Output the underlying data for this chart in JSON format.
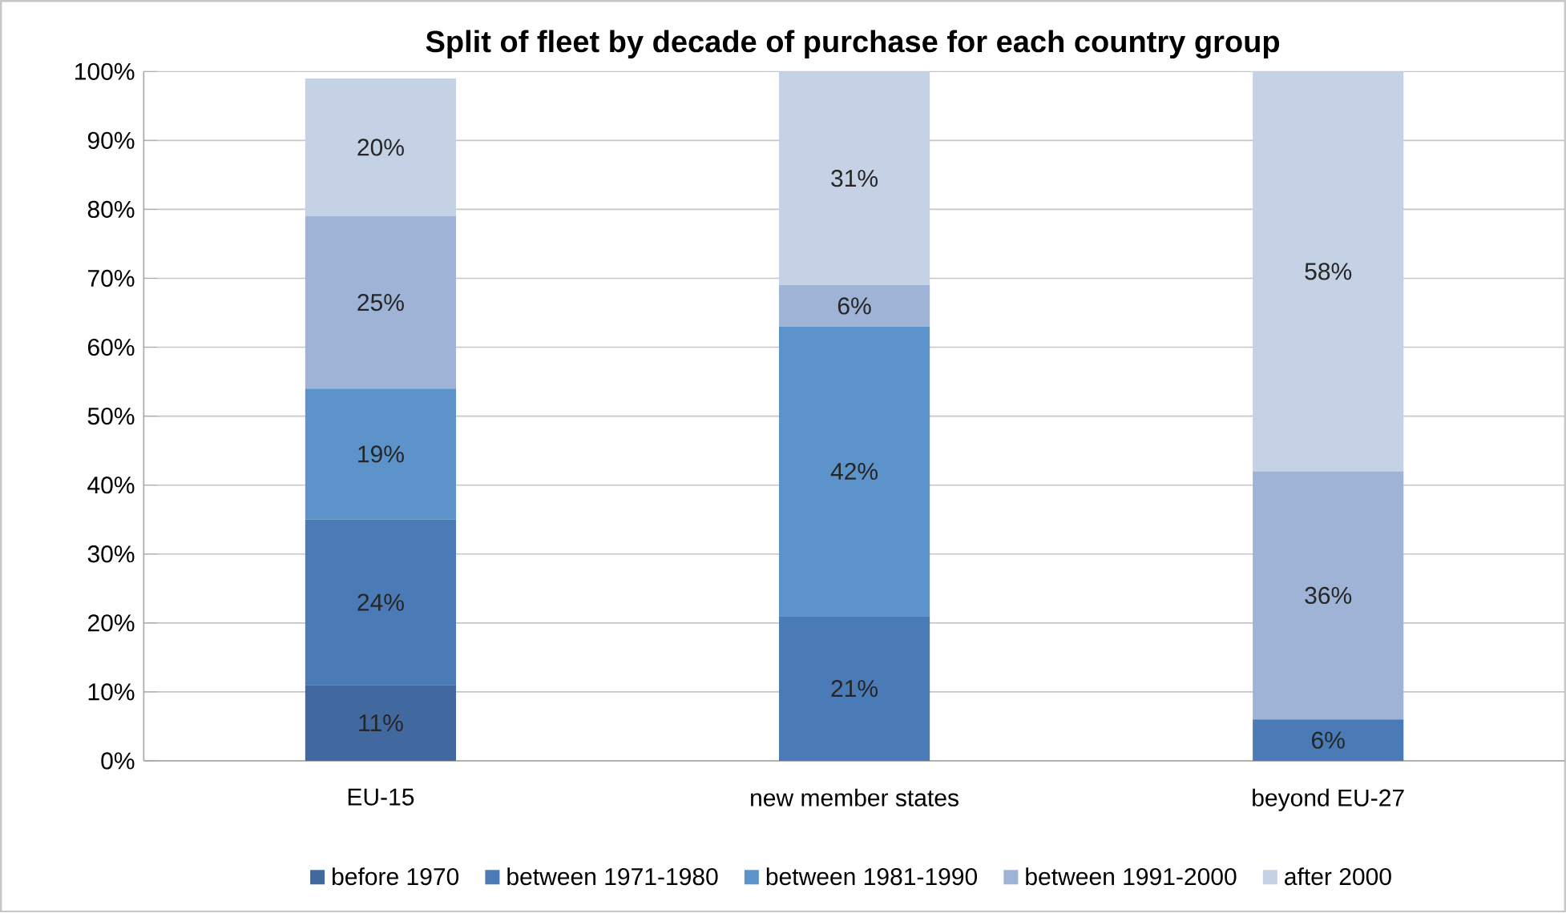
{
  "chart_data": {
    "type": "bar",
    "stacked": true,
    "title": "Split of fleet by decade of purchase for each country group",
    "categories": [
      "EU-15",
      "new member states",
      "beyond EU-27"
    ],
    "series": [
      {
        "name": "before 1970",
        "color": "#41699f",
        "values": [
          11,
          0,
          0
        ],
        "value_labels": [
          "11%",
          null,
          null
        ]
      },
      {
        "name": "between 1971-1980",
        "color": "#4a7bb6",
        "values": [
          24,
          21,
          6
        ],
        "value_labels": [
          "24%",
          "21%",
          "6%"
        ]
      },
      {
        "name": "between 1981-1990",
        "color": "#5c93cb",
        "values": [
          19,
          42,
          0
        ],
        "value_labels": [
          "19%",
          "42%",
          null
        ]
      },
      {
        "name": "between 1991-2000",
        "color": "#9fb3d7",
        "values": [
          25,
          6,
          36
        ],
        "value_labels": [
          "25%",
          "6%",
          "36%"
        ]
      },
      {
        "name": "after 2000",
        "color": "#c5d1e5",
        "values": [
          20,
          31,
          58
        ],
        "value_labels": [
          "20%",
          "31%",
          "58%"
        ]
      }
    ],
    "ylim": [
      0,
      100
    ],
    "yticks": [
      {
        "value": 0,
        "label": "0%"
      },
      {
        "value": 10,
        "label": "10%"
      },
      {
        "value": 20,
        "label": "20%"
      },
      {
        "value": 30,
        "label": "30%"
      },
      {
        "value": 40,
        "label": "40%"
      },
      {
        "value": 50,
        "label": "50%"
      },
      {
        "value": 60,
        "label": "60%"
      },
      {
        "value": 70,
        "label": "70%"
      },
      {
        "value": 80,
        "label": "80%"
      },
      {
        "value": 90,
        "label": "90%"
      },
      {
        "value": 100,
        "label": "100%"
      }
    ],
    "grid": "y",
    "legend": "bottom"
  }
}
